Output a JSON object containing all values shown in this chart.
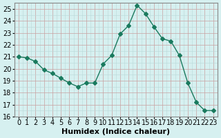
{
  "x": [
    0,
    1,
    2,
    3,
    4,
    5,
    6,
    7,
    8,
    9,
    10,
    11,
    12,
    13,
    14,
    15,
    16,
    17,
    18,
    19,
    20,
    21,
    22,
    23
  ],
  "y": [
    21.0,
    20.9,
    20.6,
    19.9,
    19.6,
    19.2,
    18.8,
    18.5,
    18.8,
    18.8,
    20.4,
    21.1,
    22.9,
    23.6,
    25.3,
    24.6,
    23.5,
    22.5,
    22.3,
    21.1,
    18.8,
    17.2,
    16.5,
    16.5
  ],
  "line_color": "#1a7a5e",
  "marker": "D",
  "marker_size": 3,
  "bg_color": "#d6f0f0",
  "xlabel": "Humidex (Indice chaleur)",
  "xlim": [
    -0.5,
    23.5
  ],
  "ylim": [
    16,
    25.5
  ],
  "yticks": [
    16,
    17,
    18,
    19,
    20,
    21,
    22,
    23,
    24,
    25
  ],
  "xticks": [
    0,
    1,
    2,
    3,
    4,
    5,
    6,
    7,
    8,
    9,
    10,
    11,
    12,
    13,
    14,
    15,
    16,
    17,
    18,
    19,
    20,
    21,
    22,
    23
  ],
  "tick_fontsize": 7,
  "xlabel_fontsize": 8,
  "minor_x_ticks": [
    0.5,
    1.5,
    2.5,
    3.5,
    4.5,
    5.5,
    6.5,
    7.5,
    8.5,
    9.5,
    10.5,
    11.5,
    12.5,
    13.5,
    14.5,
    15.5,
    16.5,
    17.5,
    18.5,
    19.5,
    20.5,
    21.5,
    22.5
  ],
  "minor_y_ticks": [
    16.5,
    17.5,
    18.5,
    19.5,
    20.5,
    21.5,
    22.5,
    23.5,
    24.5
  ]
}
